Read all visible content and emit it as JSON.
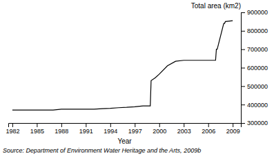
{
  "chart_data": {
    "type": "line",
    "xlabel": "Year",
    "ylabel": "Total area (km2)",
    "annotations": [
      "Source: Department of Environment Water Heritage and the Arts, 2009b"
    ],
    "x": [
      1982,
      1983,
      1984,
      1985,
      1986,
      1987,
      1988,
      1989,
      1990,
      1991,
      1992,
      1993,
      1994,
      1995,
      1996,
      1997,
      1998,
      1998.9,
      1999,
      1999.5,
      2000,
      2001,
      2002,
      2003,
      2004,
      2005,
      2006,
      2006.9,
      2007,
      2007.1,
      2007.9,
      2008,
      2008.1,
      2009
    ],
    "values": [
      370000,
      370000,
      370000,
      370000,
      370000,
      370000,
      375000,
      375000,
      375000,
      375000,
      375000,
      378000,
      380000,
      383000,
      385000,
      388000,
      393000,
      393000,
      530000,
      545000,
      565000,
      610000,
      635000,
      640000,
      640000,
      640000,
      640000,
      640000,
      700000,
      700000,
      840000,
      840000,
      850000,
      855000
    ],
    "color": "#000000",
    "xlim": [
      1981.5,
      2010
    ],
    "xticks": [
      1982,
      1985,
      1988,
      1991,
      1994,
      1997,
      2000,
      2003,
      2006,
      2009
    ],
    "ylim": [
      300000,
      900000
    ],
    "yticks": [
      300000,
      400000,
      500000,
      600000,
      700000,
      800000,
      900000
    ],
    "grid": false
  }
}
